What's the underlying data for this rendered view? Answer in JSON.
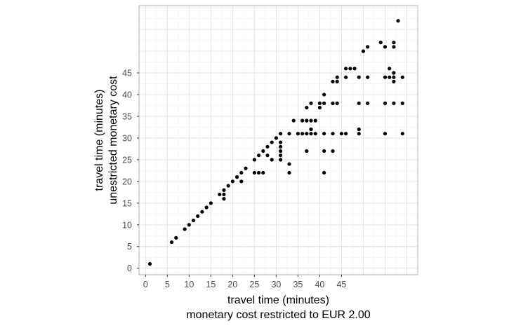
{
  "chart_data": {
    "type": "scatter",
    "xlabel": [
      "travel time (minutes)",
      "monetary cost restricted to EUR 2.00"
    ],
    "ylabel": [
      "travel time (minutes)",
      "unestricted monetary cost"
    ],
    "xlim": [
      -1.5,
      62.5
    ],
    "ylim": [
      -1.5,
      60.5
    ],
    "xticks": [
      0,
      5,
      10,
      15,
      20,
      25,
      30,
      35,
      40,
      45
    ],
    "yticks": [
      0,
      5,
      10,
      15,
      20,
      25,
      30,
      35,
      40,
      45
    ],
    "grid": true,
    "point_color": "#000000",
    "points": [
      [
        1,
        1
      ],
      [
        6,
        6
      ],
      [
        7,
        7
      ],
      [
        9,
        9
      ],
      [
        10,
        10
      ],
      [
        11,
        11
      ],
      [
        12,
        12
      ],
      [
        13,
        13
      ],
      [
        14,
        14
      ],
      [
        15,
        15
      ],
      [
        17,
        17
      ],
      [
        18,
        16
      ],
      [
        18,
        17
      ],
      [
        18,
        18
      ],
      [
        19,
        19
      ],
      [
        20,
        20
      ],
      [
        21,
        21
      ],
      [
        22,
        20
      ],
      [
        22,
        22
      ],
      [
        23,
        23
      ],
      [
        25,
        22
      ],
      [
        25,
        25
      ],
      [
        26,
        22
      ],
      [
        26,
        26
      ],
      [
        27,
        22
      ],
      [
        27,
        27
      ],
      [
        28,
        26
      ],
      [
        28,
        28
      ],
      [
        29,
        25
      ],
      [
        29,
        29
      ],
      [
        30,
        30
      ],
      [
        31,
        25
      ],
      [
        31,
        26
      ],
      [
        31,
        27
      ],
      [
        31,
        28
      ],
      [
        31,
        29
      ],
      [
        31,
        31
      ],
      [
        33,
        22
      ],
      [
        33,
        24
      ],
      [
        33,
        31
      ],
      [
        34,
        34
      ],
      [
        35,
        31
      ],
      [
        36,
        31
      ],
      [
        36,
        34
      ],
      [
        37,
        27
      ],
      [
        37,
        31
      ],
      [
        37,
        34
      ],
      [
        37,
        37
      ],
      [
        38,
        31
      ],
      [
        38,
        32
      ],
      [
        38,
        34
      ],
      [
        38,
        38
      ],
      [
        39,
        31
      ],
      [
        39,
        34
      ],
      [
        40,
        37
      ],
      [
        40,
        38
      ],
      [
        41,
        22
      ],
      [
        41,
        27
      ],
      [
        41,
        31
      ],
      [
        41,
        38
      ],
      [
        41,
        40
      ],
      [
        43,
        27
      ],
      [
        43,
        31
      ],
      [
        43,
        38
      ],
      [
        43,
        43
      ],
      [
        44,
        38
      ],
      [
        44,
        43
      ],
      [
        44,
        44
      ],
      [
        45,
        31
      ],
      [
        46,
        31
      ],
      [
        46,
        44
      ],
      [
        46,
        46
      ],
      [
        47,
        46
      ],
      [
        48,
        46
      ],
      [
        49,
        31
      ],
      [
        49,
        32
      ],
      [
        49,
        38
      ],
      [
        49,
        44
      ],
      [
        50,
        50
      ],
      [
        51,
        38
      ],
      [
        51,
        44
      ],
      [
        51,
        51
      ],
      [
        54,
        52
      ],
      [
        55,
        31
      ],
      [
        55,
        38
      ],
      [
        55,
        44
      ],
      [
        55,
        51
      ],
      [
        56,
        44
      ],
      [
        56,
        46
      ],
      [
        57,
        38
      ],
      [
        57,
        43
      ],
      [
        57,
        44
      ],
      [
        57,
        45
      ],
      [
        57,
        51
      ],
      [
        57,
        52
      ],
      [
        58,
        57
      ],
      [
        59,
        31
      ],
      [
        59,
        38
      ],
      [
        59,
        44
      ]
    ]
  }
}
